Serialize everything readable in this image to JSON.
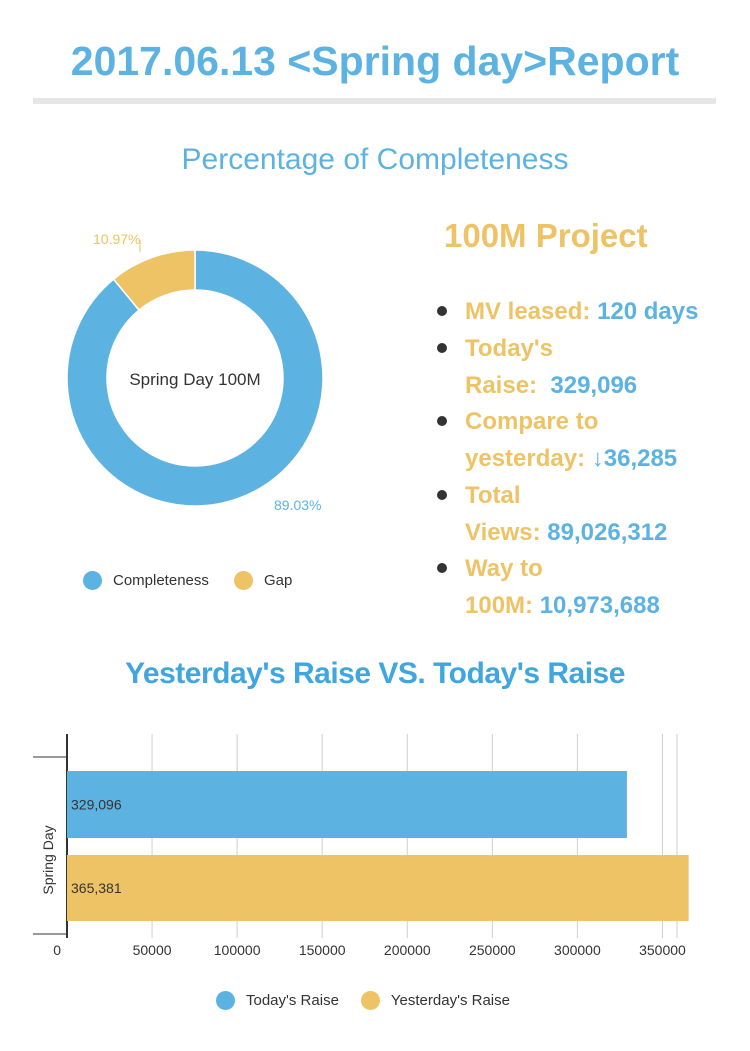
{
  "header": {
    "title": "2017.06.13 <Spring day>Report"
  },
  "colors": {
    "blue": "#5cb3e2",
    "yellow": "#edc366",
    "text": "#333333"
  },
  "chart_data": [
    {
      "type": "pie",
      "style": "donut",
      "title": "Percentage of Completeness",
      "center_label": "Spring Day 100M",
      "slices": [
        {
          "name": "Completeness",
          "value": 89.03,
          "label": "89.03%",
          "color": "#5cb3e2"
        },
        {
          "name": "Gap",
          "value": 10.97,
          "label": "10.97%",
          "color": "#edc366"
        }
      ],
      "legend_position": "bottom-left",
      "legend": [
        {
          "name": "Completeness",
          "color": "#5cb3e2"
        },
        {
          "name": "Gap",
          "color": "#edc366"
        }
      ]
    },
    {
      "type": "bar",
      "orientation": "horizontal",
      "title": "Yesterday's Raise VS. Today's Raise",
      "categories": [
        "Spring Day"
      ],
      "series": [
        {
          "name": "Today's Raise",
          "values": [
            329096
          ],
          "label": "329,096",
          "color": "#5cb3e2"
        },
        {
          "name": "Yesterday's Raise",
          "values": [
            365381
          ],
          "label": "365,381",
          "color": "#edc366"
        }
      ],
      "xlim": [
        0,
        375000
      ],
      "xticks": [
        "0",
        "50000",
        "100000",
        "150000",
        "200000",
        "250000",
        "300000",
        "350000"
      ],
      "xtick_values": [
        0,
        50000,
        100000,
        150000,
        200000,
        250000,
        300000,
        350000
      ],
      "grid": true,
      "legend_position": "bottom",
      "legend": [
        {
          "name": "Today's Raise",
          "color": "#5cb3e2"
        },
        {
          "name": "Yesterday's Raise",
          "color": "#edc366"
        }
      ]
    }
  ],
  "project": {
    "title": "100M Project",
    "stats": [
      {
        "lines": [
          {
            "label": "MV leased:",
            "value": "120 days"
          }
        ]
      },
      {
        "lines": [
          {
            "label": "Today's",
            "value": ""
          },
          {
            "label": "Raise:",
            "value": "329,096"
          }
        ]
      },
      {
        "lines": [
          {
            "label": "Compare to",
            "value": ""
          },
          {
            "label": "yesterday:",
            "value": "↓36,285"
          }
        ]
      },
      {
        "lines": [
          {
            "label": "Total",
            "value": ""
          },
          {
            "label": "Views:",
            "value": "89,026,312"
          }
        ]
      },
      {
        "lines": [
          {
            "label": "Way to",
            "value": ""
          },
          {
            "label": "100M:",
            "value": "10,973,688"
          }
        ]
      }
    ]
  }
}
